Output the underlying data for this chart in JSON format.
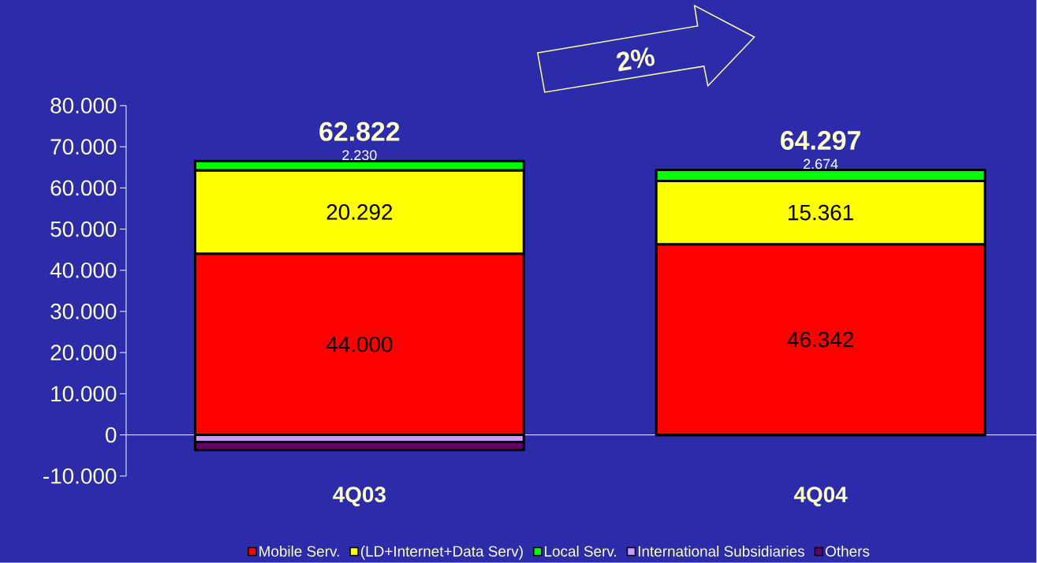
{
  "chart_data": {
    "type": "bar",
    "stacked": true,
    "categories": [
      "4Q03",
      "4Q04"
    ],
    "series": [
      {
        "name": "Mobile Serv.",
        "color": "#ff0000",
        "values": [
          44000,
          46342
        ],
        "value_labels": [
          "44.000",
          "46.342"
        ]
      },
      {
        "name": "(LD+Internet+Data Serv)",
        "color": "#ffff00",
        "values": [
          20292,
          15361
        ],
        "value_labels": [
          "20.292",
          "15.361"
        ]
      },
      {
        "name": "Local Serv.",
        "color": "#00ff00",
        "values": [
          2230,
          2674
        ],
        "value_labels": [
          "2.230",
          "2.674"
        ]
      },
      {
        "name": "International Subsidiaries",
        "color": "#cc99ff",
        "values": [
          -1700,
          null
        ],
        "value_labels": [
          null,
          null
        ]
      },
      {
        "name": "Others",
        "color": "#660066",
        "values": [
          -2000,
          -80
        ],
        "value_labels": [
          null,
          null
        ]
      }
    ],
    "totals": [
      "62.822",
      "64.297"
    ],
    "ylim": [
      -10000,
      80000
    ],
    "yticks": [
      {
        "value": -10000,
        "label": "-10.000"
      },
      0,
      {
        "value": 10000,
        "label": "10.000"
      },
      {
        "value": 20000,
        "label": "20.000"
      },
      {
        "value": 30000,
        "label": "30.000"
      },
      {
        "value": 40000,
        "label": "40.000"
      },
      {
        "value": 50000,
        "label": "50.000"
      },
      {
        "value": 60000,
        "label": "60.000"
      },
      {
        "value": 70000,
        "label": "70.000"
      },
      {
        "value": 80000,
        "label": "80.000"
      }
    ],
    "annotations": [
      "2%"
    ],
    "legend": "bottom",
    "grid": false
  }
}
